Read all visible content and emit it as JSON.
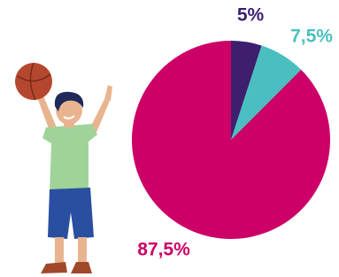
{
  "chart_data": {
    "type": "pie",
    "categories": [
      null,
      null,
      null
    ],
    "values": [
      5,
      7.5,
      87.5
    ],
    "value_labels": [
      "5%",
      "7,5%",
      "87,5%"
    ],
    "colors": [
      "#3d1f6e",
      "#4bbfbf",
      "#cc0066"
    ]
  }
}
